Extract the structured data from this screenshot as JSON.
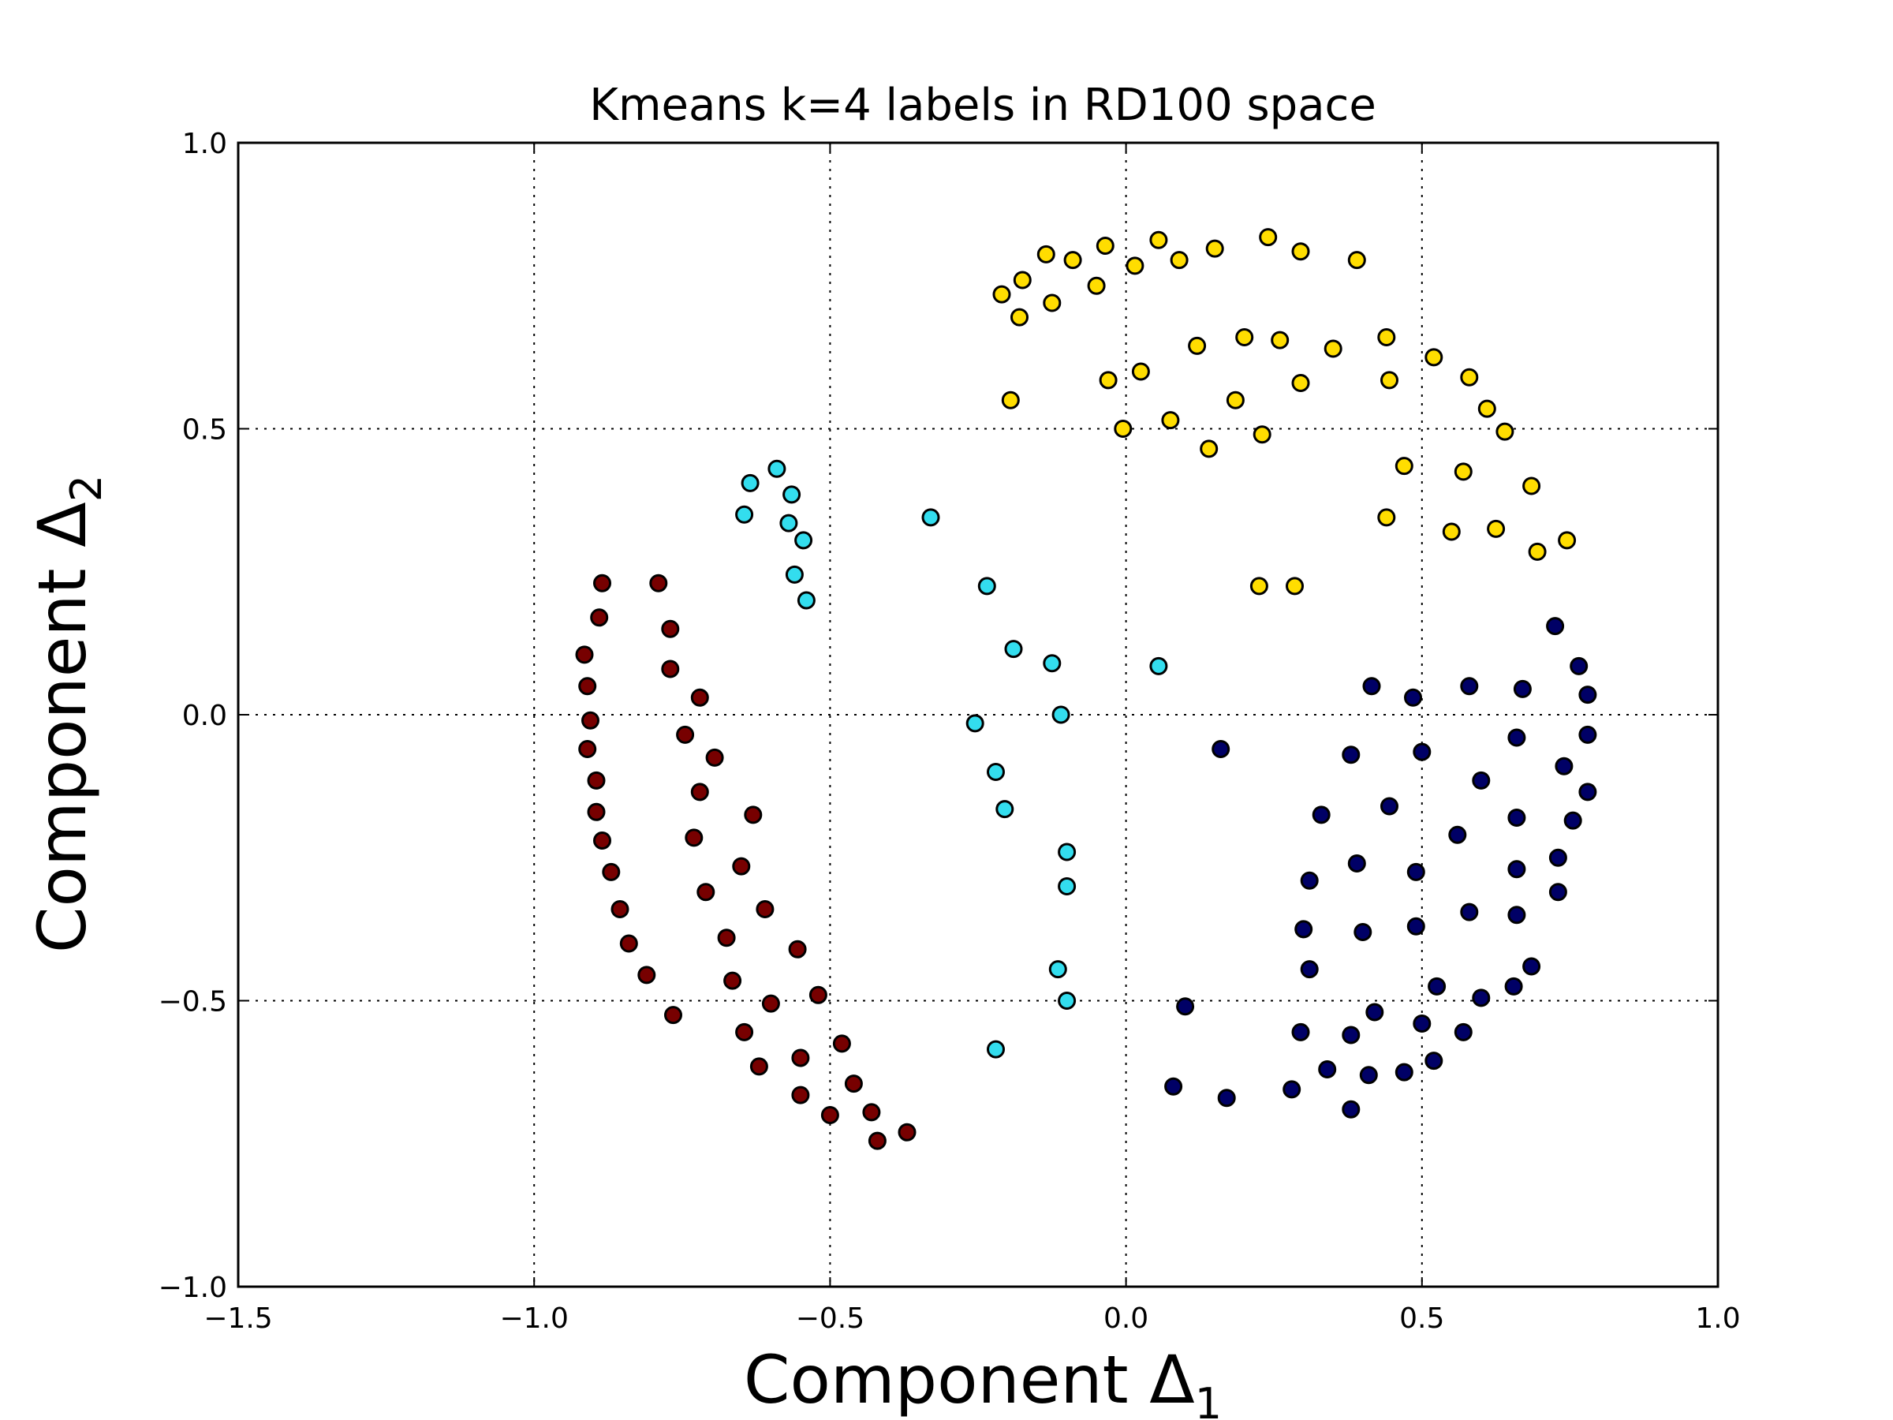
{
  "chart_data": {
    "type": "scatter",
    "title": "Kmeans k=4 labels in RD100 space",
    "xlabel": "Component Δ",
    "xlabel_sub": "1",
    "ylabel": "Component Δ",
    "ylabel_sub": "2",
    "xlim": [
      -1.5,
      1.0
    ],
    "ylim": [
      -1.0,
      1.0
    ],
    "xticks": [
      -1.5,
      -1.0,
      -0.5,
      0.0,
      0.5,
      1.0
    ],
    "xtick_labels": [
      "−1.5",
      "−1.0",
      "−0.5",
      "0.0",
      "0.5",
      "1.0"
    ],
    "yticks": [
      -1.0,
      -0.5,
      0.0,
      0.5,
      1.0
    ],
    "ytick_labels": [
      "−1.0",
      "−0.5",
      "0.0",
      "0.5",
      "1.0"
    ],
    "grid": true,
    "series": [
      {
        "color": "#ffdd00",
        "points": [
          [
            -0.21,
            0.735
          ],
          [
            -0.175,
            0.76
          ],
          [
            -0.18,
            0.695
          ],
          [
            -0.135,
            0.805
          ],
          [
            -0.125,
            0.72
          ],
          [
            -0.09,
            0.795
          ],
          [
            -0.05,
            0.75
          ],
          [
            -0.035,
            0.82
          ],
          [
            0.055,
            0.83
          ],
          [
            0.015,
            0.785
          ],
          [
            0.09,
            0.795
          ],
          [
            0.15,
            0.815
          ],
          [
            0.24,
            0.835
          ],
          [
            0.295,
            0.81
          ],
          [
            0.39,
            0.795
          ],
          [
            -0.195,
            0.55
          ],
          [
            -0.03,
            0.585
          ],
          [
            0.025,
            0.6
          ],
          [
            0.12,
            0.645
          ],
          [
            0.2,
            0.66
          ],
          [
            0.26,
            0.655
          ],
          [
            0.35,
            0.64
          ],
          [
            0.44,
            0.66
          ],
          [
            0.52,
            0.625
          ],
          [
            0.58,
            0.59
          ],
          [
            0.445,
            0.585
          ],
          [
            0.295,
            0.58
          ],
          [
            0.185,
            0.55
          ],
          [
            0.075,
            0.515
          ],
          [
            -0.005,
            0.5
          ],
          [
            0.23,
            0.49
          ],
          [
            0.61,
            0.535
          ],
          [
            0.64,
            0.495
          ],
          [
            0.14,
            0.465
          ],
          [
            0.47,
            0.435
          ],
          [
            0.57,
            0.425
          ],
          [
            0.685,
            0.4
          ],
          [
            0.44,
            0.345
          ],
          [
            0.55,
            0.32
          ],
          [
            0.625,
            0.325
          ],
          [
            0.745,
            0.305
          ],
          [
            0.695,
            0.285
          ],
          [
            0.225,
            0.225
          ],
          [
            0.285,
            0.225
          ]
        ]
      },
      {
        "color": "#33ddee",
        "points": [
          [
            -0.59,
            0.43
          ],
          [
            -0.635,
            0.405
          ],
          [
            -0.565,
            0.385
          ],
          [
            -0.645,
            0.35
          ],
          [
            -0.57,
            0.335
          ],
          [
            -0.545,
            0.305
          ],
          [
            -0.56,
            0.245
          ],
          [
            -0.54,
            0.2
          ],
          [
            -0.33,
            0.345
          ],
          [
            -0.235,
            0.225
          ],
          [
            -0.19,
            0.115
          ],
          [
            -0.125,
            0.09
          ],
          [
            0.055,
            0.085
          ],
          [
            -0.11,
            0.0
          ],
          [
            -0.255,
            -0.015
          ],
          [
            -0.22,
            -0.1
          ],
          [
            -0.205,
            -0.165
          ],
          [
            -0.1,
            -0.24
          ],
          [
            -0.1,
            -0.3
          ],
          [
            -0.115,
            -0.445
          ],
          [
            -0.1,
            -0.5
          ],
          [
            -0.22,
            -0.585
          ]
        ]
      },
      {
        "color": "#770000",
        "points": [
          [
            -0.885,
            0.23
          ],
          [
            -0.79,
            0.23
          ],
          [
            -0.89,
            0.17
          ],
          [
            -0.77,
            0.15
          ],
          [
            -0.915,
            0.105
          ],
          [
            -0.91,
            0.05
          ],
          [
            -0.77,
            0.08
          ],
          [
            -0.72,
            0.03
          ],
          [
            -0.905,
            -0.01
          ],
          [
            -0.745,
            -0.035
          ],
          [
            -0.91,
            -0.06
          ],
          [
            -0.695,
            -0.075
          ],
          [
            -0.895,
            -0.115
          ],
          [
            -0.72,
            -0.135
          ],
          [
            -0.895,
            -0.17
          ],
          [
            -0.63,
            -0.175
          ],
          [
            -0.885,
            -0.22
          ],
          [
            -0.73,
            -0.215
          ],
          [
            -0.87,
            -0.275
          ],
          [
            -0.65,
            -0.265
          ],
          [
            -0.71,
            -0.31
          ],
          [
            -0.855,
            -0.34
          ],
          [
            -0.61,
            -0.34
          ],
          [
            -0.84,
            -0.4
          ],
          [
            -0.675,
            -0.39
          ],
          [
            -0.81,
            -0.455
          ],
          [
            -0.555,
            -0.41
          ],
          [
            -0.665,
            -0.465
          ],
          [
            -0.765,
            -0.525
          ],
          [
            -0.6,
            -0.505
          ],
          [
            -0.52,
            -0.49
          ],
          [
            -0.645,
            -0.555
          ],
          [
            -0.48,
            -0.575
          ],
          [
            -0.55,
            -0.6
          ],
          [
            -0.62,
            -0.615
          ],
          [
            -0.46,
            -0.645
          ],
          [
            -0.55,
            -0.665
          ],
          [
            -0.5,
            -0.7
          ],
          [
            -0.43,
            -0.695
          ],
          [
            -0.42,
            -0.745
          ],
          [
            -0.37,
            -0.73
          ]
        ]
      },
      {
        "color": "#000066",
        "points": [
          [
            0.725,
            0.155
          ],
          [
            0.765,
            0.085
          ],
          [
            0.78,
            0.035
          ],
          [
            0.415,
            0.05
          ],
          [
            0.485,
            0.03
          ],
          [
            0.58,
            0.05
          ],
          [
            0.67,
            0.045
          ],
          [
            0.78,
            -0.035
          ],
          [
            0.66,
            -0.04
          ],
          [
            0.16,
            -0.06
          ],
          [
            0.38,
            -0.07
          ],
          [
            0.5,
            -0.065
          ],
          [
            0.74,
            -0.09
          ],
          [
            0.6,
            -0.115
          ],
          [
            0.78,
            -0.135
          ],
          [
            0.33,
            -0.175
          ],
          [
            0.445,
            -0.16
          ],
          [
            0.66,
            -0.18
          ],
          [
            0.755,
            -0.185
          ],
          [
            0.56,
            -0.21
          ],
          [
            0.73,
            -0.25
          ],
          [
            0.39,
            -0.26
          ],
          [
            0.49,
            -0.275
          ],
          [
            0.66,
            -0.27
          ],
          [
            0.31,
            -0.29
          ],
          [
            0.73,
            -0.31
          ],
          [
            0.58,
            -0.345
          ],
          [
            0.66,
            -0.35
          ],
          [
            0.3,
            -0.375
          ],
          [
            0.4,
            -0.38
          ],
          [
            0.49,
            -0.37
          ],
          [
            0.31,
            -0.445
          ],
          [
            0.685,
            -0.44
          ],
          [
            0.1,
            -0.51
          ],
          [
            0.525,
            -0.475
          ],
          [
            0.655,
            -0.475
          ],
          [
            0.42,
            -0.52
          ],
          [
            0.6,
            -0.495
          ],
          [
            0.295,
            -0.555
          ],
          [
            0.38,
            -0.56
          ],
          [
            0.5,
            -0.54
          ],
          [
            0.57,
            -0.555
          ],
          [
            0.52,
            -0.605
          ],
          [
            0.34,
            -0.62
          ],
          [
            0.41,
            -0.63
          ],
          [
            0.47,
            -0.625
          ],
          [
            0.08,
            -0.65
          ],
          [
            0.17,
            -0.67
          ],
          [
            0.28,
            -0.655
          ],
          [
            0.38,
            -0.69
          ]
        ]
      }
    ]
  }
}
